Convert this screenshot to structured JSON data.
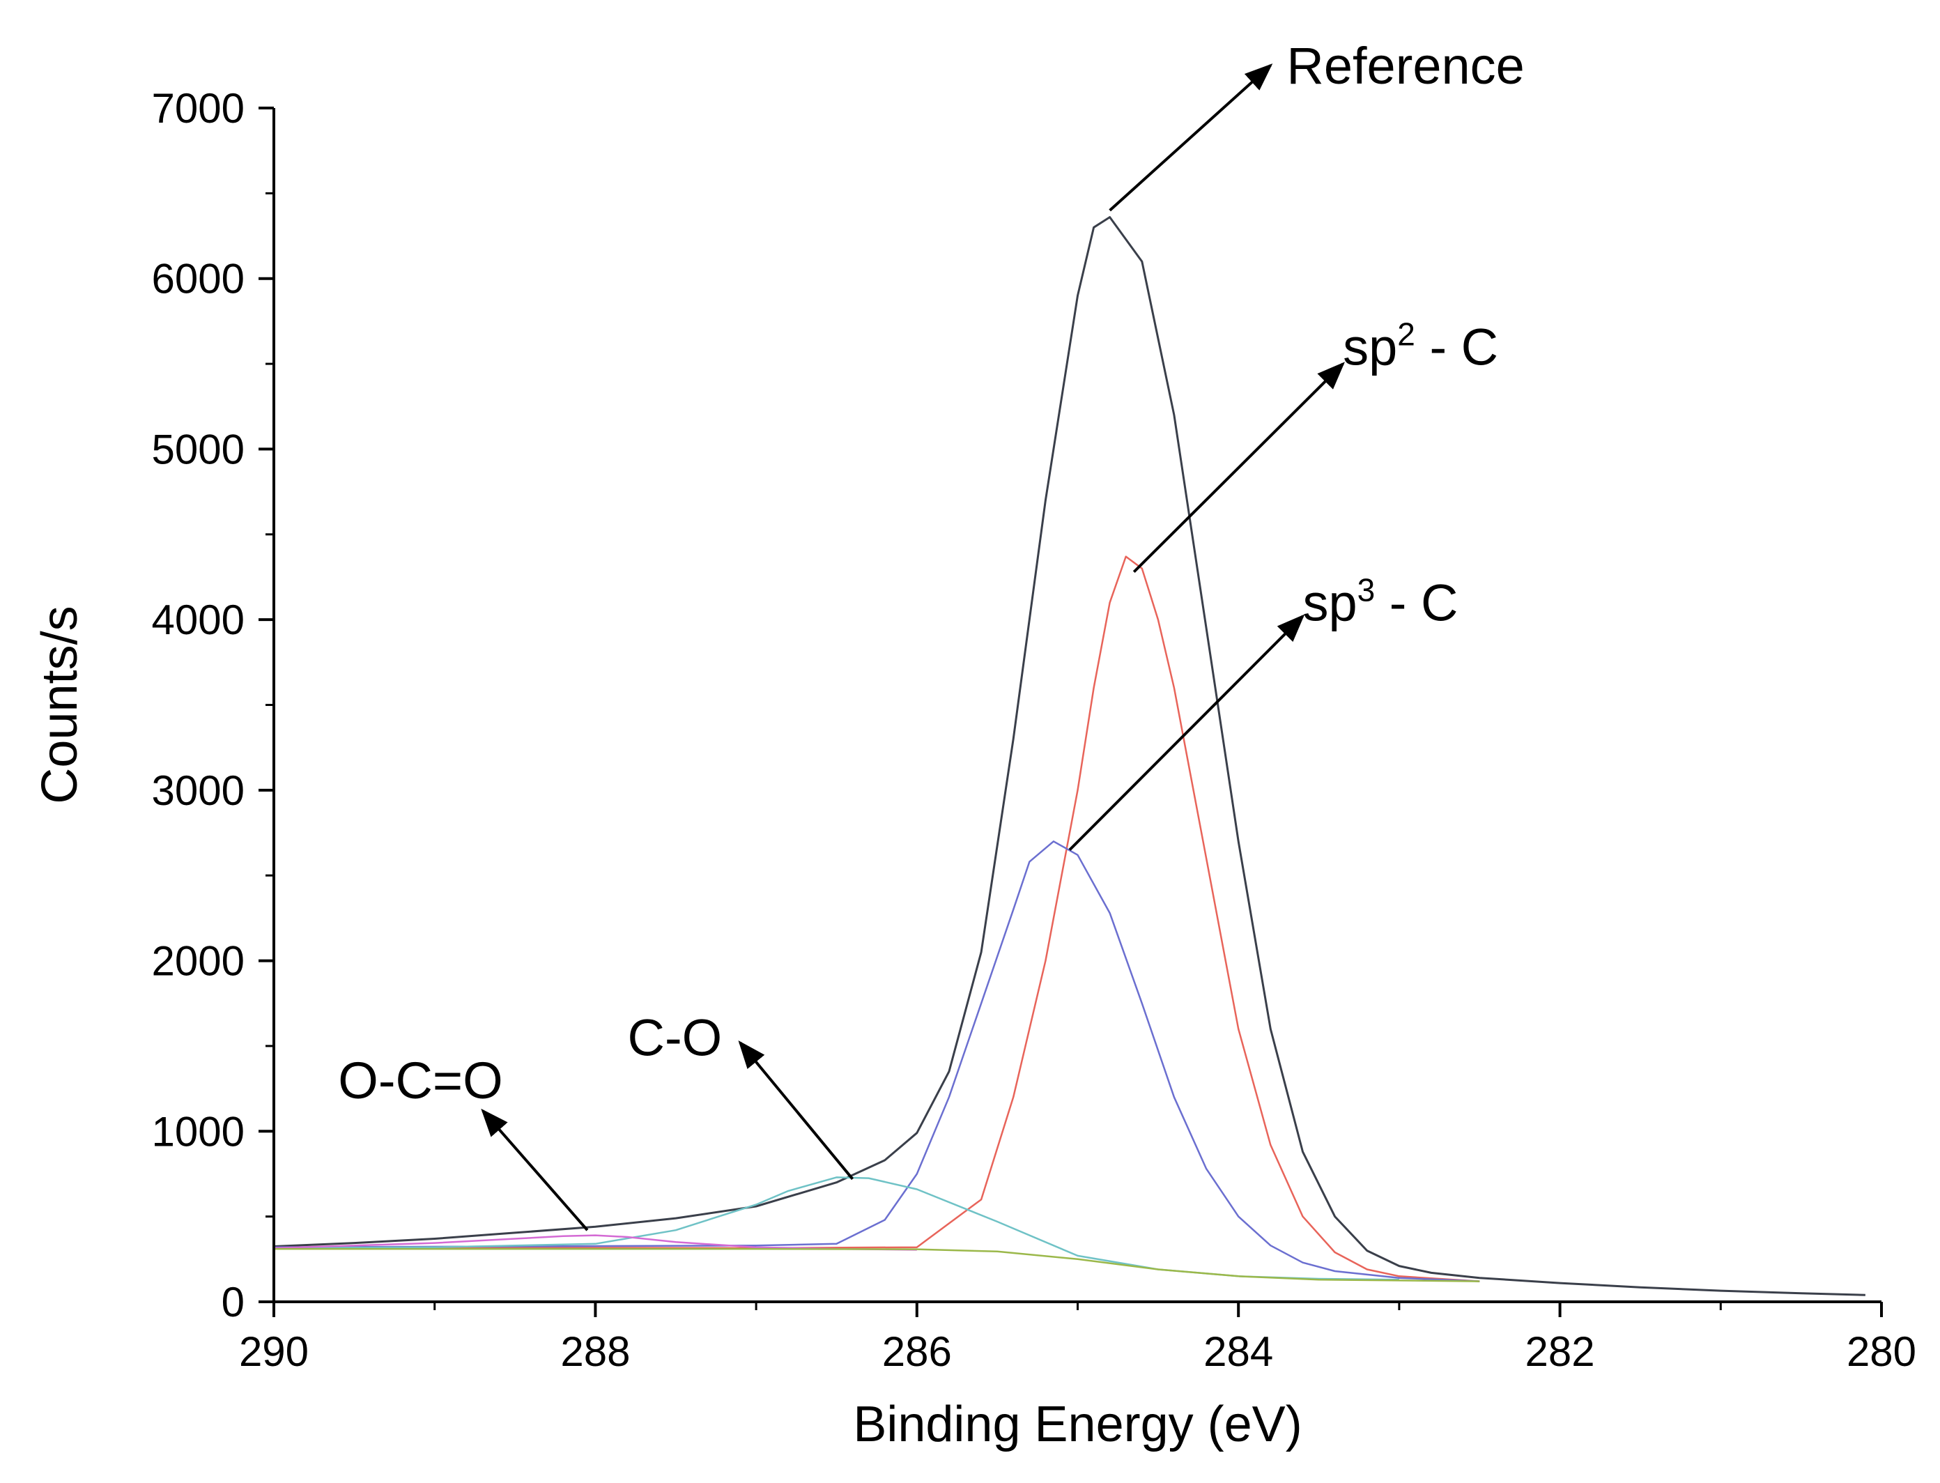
{
  "chart_data": {
    "type": "line",
    "xlabel": "Binding Energy (eV)",
    "ylabel": "Counts/s",
    "xlim": [
      290,
      280
    ],
    "ylim": [
      0,
      7000
    ],
    "x_ticks": [
      "290",
      "288",
      "286",
      "284",
      "282",
      "280"
    ],
    "y_ticks": [
      "0",
      "1000",
      "2000",
      "3000",
      "4000",
      "5000",
      "6000",
      "7000"
    ],
    "x_tick_values": [
      290,
      288,
      286,
      284,
      282,
      280
    ],
    "y_tick_values": [
      0,
      1000,
      2000,
      3000,
      4000,
      5000,
      6000,
      7000
    ],
    "grid": false,
    "legend": "none",
    "series": [
      {
        "color": "#3a3f4a",
        "x": [
          290,
          289.5,
          289,
          288.5,
          288,
          287.5,
          287,
          286.5,
          286.2,
          286,
          285.8,
          285.6,
          285.4,
          285.2,
          285,
          284.9,
          284.8,
          284.6,
          284.4,
          284.2,
          284,
          283.8,
          283.6,
          283.4,
          283.2,
          283,
          282.8,
          282.5,
          282,
          281.5,
          281,
          280.5,
          280.1
        ],
        "y": [
          325,
          345,
          370,
          405,
          440,
          490,
          560,
          700,
          830,
          990,
          1350,
          2050,
          3300,
          4700,
          5900,
          6300,
          6360,
          6100,
          5200,
          3950,
          2700,
          1600,
          880,
          500,
          300,
          210,
          170,
          140,
          110,
          85,
          65,
          50,
          40
        ]
      },
      {
        "color": "#e8645a",
        "x": [
          290,
          287,
          286,
          285.6,
          285.4,
          285.2,
          285,
          284.9,
          284.8,
          284.7,
          284.6,
          284.5,
          284.4,
          284.2,
          284,
          283.8,
          283.6,
          283.4,
          283.2,
          283,
          282.5
        ],
        "y": [
          320,
          315,
          320,
          600,
          1200,
          2000,
          3000,
          3600,
          4100,
          4370,
          4300,
          4000,
          3600,
          2600,
          1600,
          920,
          500,
          290,
          190,
          150,
          120
        ]
      },
      {
        "color": "#6b6fd0",
        "x": [
          290,
          287,
          286.5,
          286.2,
          286,
          285.8,
          285.6,
          285.4,
          285.3,
          285.15,
          285,
          284.8,
          284.6,
          284.4,
          284.2,
          284,
          283.8,
          283.6,
          283.4,
          283,
          282.5
        ],
        "y": [
          320,
          330,
          340,
          480,
          750,
          1200,
          1750,
          2300,
          2580,
          2700,
          2620,
          2280,
          1750,
          1200,
          780,
          500,
          330,
          230,
          180,
          140,
          120
        ]
      },
      {
        "color": "#6fc2c6",
        "x": [
          290,
          289,
          288,
          287.5,
          287,
          286.8,
          286.5,
          286.3,
          286,
          285.5,
          285,
          284.5,
          284,
          283.5,
          283
        ],
        "y": [
          315,
          320,
          340,
          420,
          570,
          650,
          730,
          725,
          660,
          470,
          270,
          190,
          150,
          135,
          130
        ]
      },
      {
        "color": "#d46ad4",
        "x": [
          290,
          289,
          288.5,
          288.2,
          288,
          287.8,
          287.5,
          287,
          286.5,
          286
        ],
        "y": [
          315,
          345,
          370,
          385,
          390,
          380,
          350,
          320,
          310,
          305
        ]
      },
      {
        "color": "#9bb84a",
        "x": [
          290,
          288,
          287,
          286,
          285.5,
          285,
          284.5,
          284,
          283.5,
          283,
          282.5
        ],
        "y": [
          310,
          310,
          310,
          308,
          295,
          250,
          190,
          150,
          130,
          125,
          120
        ]
      }
    ],
    "annotations": [
      {
        "text": "Reference",
        "x": 284.8,
        "y": 6400,
        "arrow_to": [
          283.8,
          7250
        ],
        "text_pos": [
          283.7,
          7250
        ]
      },
      {
        "text": "sp",
        "sup": "2",
        "suffix": " - C",
        "x": 284.65,
        "y": 4280,
        "arrow_to": [
          283.35,
          5500
        ],
        "text_pos": [
          283.35,
          5600
        ]
      },
      {
        "text": "sp",
        "sup": "3",
        "suffix": " - C",
        "x": 285.05,
        "y": 2650,
        "arrow_to": [
          283.6,
          4020
        ],
        "text_pos": [
          283.6,
          4100
        ]
      },
      {
        "text": "C-O",
        "x": 286.4,
        "y": 720,
        "arrow_to": [
          287.1,
          1520
        ],
        "text_pos": [
          287.8,
          1550
        ]
      },
      {
        "text": "O-C=O",
        "x": 288.05,
        "y": 420,
        "arrow_to": [
          288.7,
          1120
        ],
        "text_pos": [
          289.6,
          1300
        ]
      }
    ]
  }
}
